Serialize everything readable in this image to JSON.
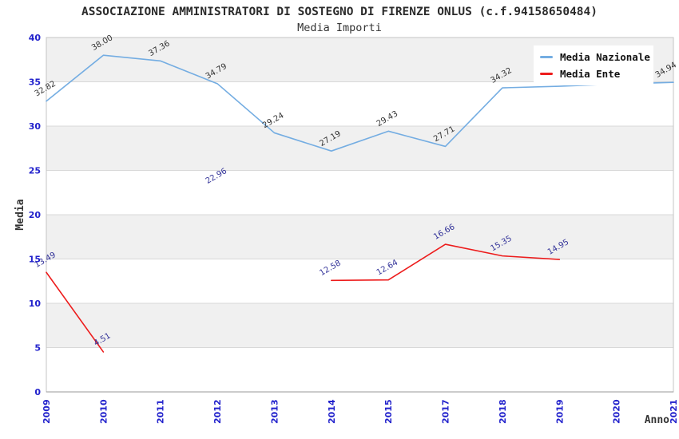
{
  "header": {
    "title": "ASSOCIAZIONE AMMINISTRATORI DI SOSTEGNO DI FIRENZE ONLUS (c.f.94158650484)",
    "subtitle": "Media Importi"
  },
  "chart_data": {
    "type": "line",
    "title": "ASSOCIAZIONE AMMINISTRATORI DI SOSTEGNO DI FIRENZE ONLUS (c.f.94158650484)",
    "subtitle": "Media Importi",
    "xlabel": "Anno",
    "ylabel": "Media",
    "categories": [
      "2009",
      "2010",
      "2011",
      "2012",
      "2013",
      "2014",
      "2015",
      "2017",
      "2018",
      "2019",
      "2020",
      "2021"
    ],
    "series": [
      {
        "name": "Media Nazionale",
        "color": "#74ade2",
        "label_color": "#333333",
        "values": [
          32.82,
          38.0,
          37.36,
          34.79,
          29.24,
          27.19,
          29.43,
          27.71,
          34.32,
          34.5,
          34.75,
          34.94
        ],
        "labels": [
          "32.82",
          "38.00",
          "37.36",
          "34.79",
          "29.24",
          "27.19",
          "29.43",
          "27.71",
          "34.32",
          null,
          null,
          "34.94"
        ]
      },
      {
        "name": "Media Ente",
        "color": "#ed1c1c",
        "label_color": "#333399",
        "values": [
          13.49,
          4.51,
          null,
          22.96,
          null,
          12.58,
          12.64,
          16.66,
          15.35,
          14.95,
          null,
          null
        ],
        "labels": [
          "13.49",
          "4.51",
          null,
          "22.96",
          null,
          "12.58",
          "12.64",
          "16.66",
          "15.35",
          "14.95",
          null,
          null
        ]
      }
    ],
    "ylim": [
      0,
      40
    ],
    "ytick_step": 5,
    "yticks": [
      "0",
      "5",
      "10",
      "15",
      "20",
      "25",
      "30",
      "35",
      "40"
    ],
    "grid": true,
    "legend_position": "top-right",
    "colors": {
      "tick_labels": "#2222cc",
      "band_white": "#ffffff",
      "band_gray": "#f0f0f0",
      "gridline": "#d8d8d8",
      "plot_border": "#c4c4c4",
      "axis_line": "#999999"
    }
  }
}
